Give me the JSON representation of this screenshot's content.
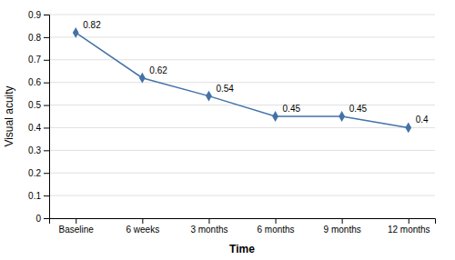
{
  "chart_data": {
    "type": "line",
    "categories": [
      "Baseline",
      "6 weeks",
      "3 months",
      "6 months",
      "9 months",
      "12 months"
    ],
    "values": [
      0.82,
      0.62,
      0.54,
      0.45,
      0.45,
      0.4
    ],
    "color": "#4472a8",
    "marker": "diamond",
    "data_labels": true,
    "xlabel": "Time",
    "ylabel": "Visual acuity",
    "ylim": [
      0,
      0.9
    ],
    "yticks": [
      0,
      0.1,
      0.2,
      0.3,
      0.4,
      0.5,
      0.6,
      0.7,
      0.8,
      0.9
    ],
    "grid": true
  }
}
